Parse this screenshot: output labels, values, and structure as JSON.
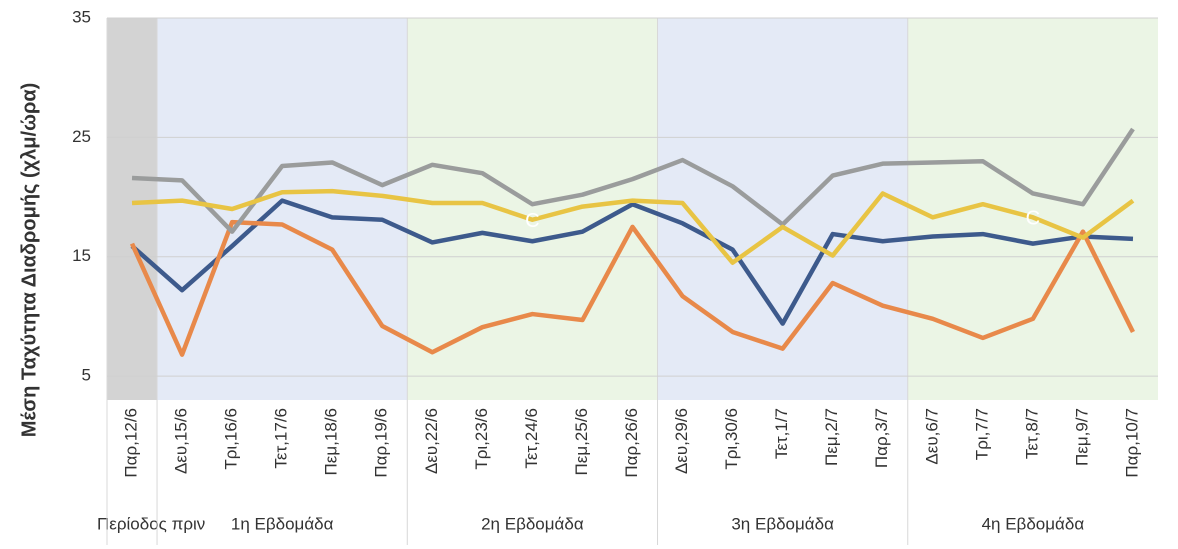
{
  "chart_data": {
    "type": "line",
    "y_label": "Μέση Ταχύτητα Διαδρομής (χλμ/ώρα)",
    "categories": [
      "Παρ,12/6",
      "Δευ,15/6",
      "Τρι,16/6",
      "Τετ,17/6",
      "Πεμ,18/6",
      "Παρ,19/6",
      "Δευ,22/6",
      "Τρι,23/6",
      "Τετ,24/6",
      "Πεμ,25/6",
      "Παρ,26/6",
      "Δευ,29/6",
      "Τρι,30/6",
      "Τετ,1/7",
      "Πεμ,2/7",
      "Παρ,3/7",
      "Δευ,6/7",
      "Τρι,7/7",
      "Τετ,8/7",
      "Πεμ,9/7",
      "Παρ,10/7"
    ],
    "series": [
      {
        "color": "#3d5a8c",
        "values": [
          15.9,
          12.2,
          15.9,
          19.7,
          18.3,
          18.1,
          16.2,
          17.0,
          16.3,
          17.1,
          19.4,
          17.8,
          15.6,
          9.4,
          16.9,
          16.3,
          16.7,
          16.9,
          16.1,
          16.7,
          16.5
        ]
      },
      {
        "color": "#e8894a",
        "values": [
          16.1,
          6.8,
          17.9,
          17.7,
          15.6,
          9.2,
          7.0,
          9.1,
          10.2,
          9.7,
          17.5,
          11.7,
          8.7,
          7.3,
          12.8,
          10.9,
          9.8,
          8.2,
          9.8,
          17.1,
          8.7
        ]
      },
      {
        "color": "#9a9c9c",
        "values": [
          21.6,
          21.4,
          17.1,
          22.6,
          22.9,
          21.0,
          22.7,
          22.0,
          19.4,
          20.2,
          21.5,
          23.1,
          20.9,
          17.7,
          21.8,
          22.8,
          22.9,
          23.0,
          20.3,
          19.4,
          25.7
        ]
      },
      {
        "color": "#e8c444",
        "values": [
          19.5,
          19.7,
          19.0,
          20.4,
          20.5,
          20.1,
          19.5,
          19.5,
          18.1,
          19.2,
          19.7,
          19.5,
          14.5,
          17.5,
          15.1,
          20.3,
          18.3,
          19.4,
          18.3,
          16.6,
          19.7
        ]
      }
    ],
    "annotations": [
      {
        "text": "C",
        "x": "Τετ,24/6",
        "series": 3
      },
      {
        "text": "C",
        "x": "Τετ,8/7",
        "series": 3
      }
    ],
    "groups": [
      {
        "label": "Περίοδος πριν",
        "start": "Παρ,12/6",
        "end": "Παρ,12/6",
        "color": "#cbcbcb"
      },
      {
        "label": "1η Εβδομάδα",
        "start": "Δευ,15/6",
        "end": "Παρ,19/6",
        "color": "#dfe6f5"
      },
      {
        "label": "2η Εβδομάδα",
        "start": "Δευ,22/6",
        "end": "Παρ,26/6",
        "color": "#e8f3e1"
      },
      {
        "label": "3η Εβδομάδα",
        "start": "Δευ,29/6",
        "end": "Παρ,3/7",
        "color": "#dfe6f5"
      },
      {
        "label": "4η Εβδομάδα",
        "start": "Δευ,6/7",
        "end": "Παρ,10/7",
        "color": "#e8f3e1"
      }
    ],
    "ylim": [
      3,
      35
    ],
    "yticks": [
      5,
      15,
      25,
      35
    ],
    "grid": true
  }
}
